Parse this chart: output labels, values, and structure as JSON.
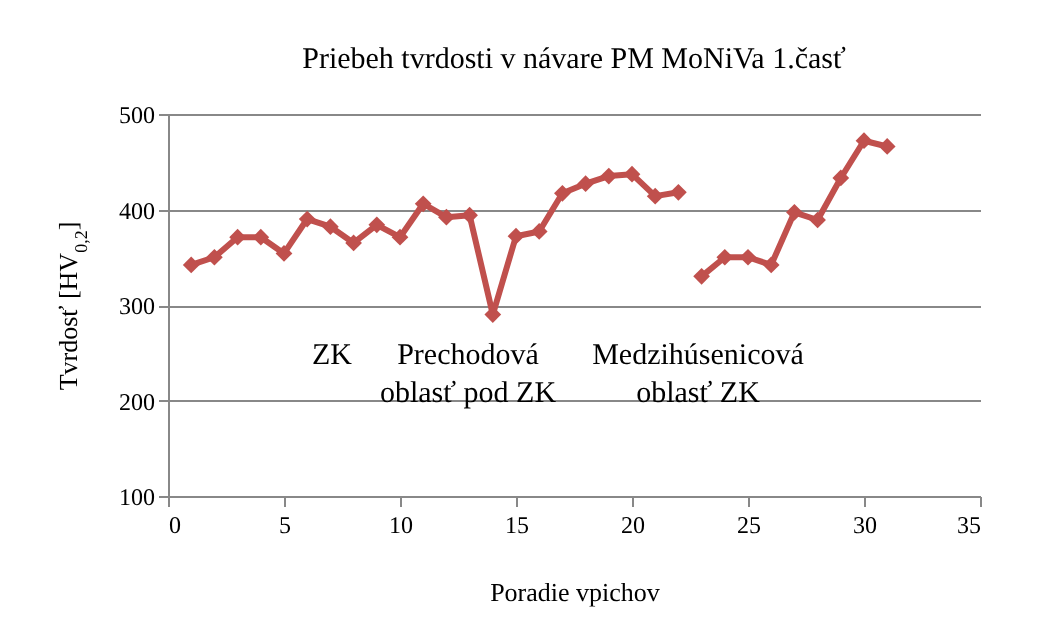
{
  "chart_data": {
    "type": "line",
    "title": "Priebeh  tvrdosti  v návare PM MoNiVa 1.časť",
    "xlabel": "Poradie vpichov",
    "ylabel": "Tvrdosť [HV$_{0,2}$]",
    "series": [
      {
        "color": "#c0504d",
        "x": [
          1,
          2,
          3,
          4,
          5,
          6,
          7,
          8,
          9,
          10,
          11,
          12,
          13,
          14,
          15,
          16,
          17,
          18,
          19,
          20,
          21,
          22
        ],
        "values": [
          342,
          350,
          371,
          371,
          354,
          390,
          382,
          365,
          384,
          371,
          406,
          392,
          394,
          290,
          372,
          377,
          417,
          427,
          435,
          437,
          414,
          418
        ]
      },
      {
        "color": "#c0504d",
        "x": [
          23,
          24,
          25,
          26,
          27,
          28,
          29,
          30,
          31
        ],
        "values": [
          330,
          350,
          350,
          342,
          397,
          389,
          433,
          472,
          466
        ]
      }
    ],
    "xlim": [
      0,
      35
    ],
    "xticks": [
      0,
      5,
      10,
      15,
      20,
      25,
      30,
      35
    ],
    "ylim": [
      100,
      500
    ],
    "yticks": [
      100,
      200,
      300,
      400,
      500
    ],
    "grid": "y",
    "marker": "diamond",
    "line_style": "solid",
    "annotations": [
      "ZK",
      "Prechodová\noblasť pod ZK",
      "Medzihúsenicová\noblasť ZK"
    ]
  }
}
